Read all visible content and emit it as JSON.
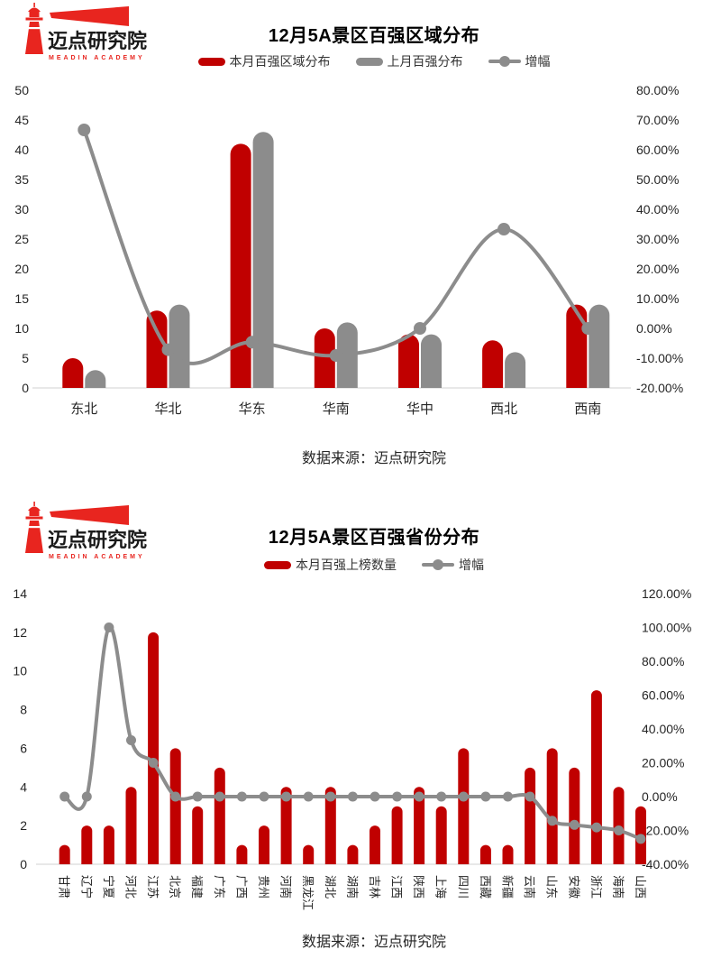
{
  "logo": {
    "name": "迈点研究院",
    "subtitle": "MEADIN ACADEMY",
    "color": "#e8251f"
  },
  "colors": {
    "bar_red": "#c00000",
    "bar_gray": "#8c8c8c",
    "line_gray": "#8c8c8c",
    "axis_line": "#d9d9d9",
    "text": "#262626"
  },
  "chart_data": [
    {
      "type": "bar+line",
      "title": "12月5A景区百强区域分布",
      "legend": [
        {
          "label": "本月百强区域分布",
          "swatch": "bar",
          "color": "#c00000"
        },
        {
          "label": "上月百强分布",
          "swatch": "bar",
          "color": "#8c8c8c"
        },
        {
          "label": "增幅",
          "swatch": "line",
          "color": "#8c8c8c"
        }
      ],
      "categories": [
        "东北",
        "华北",
        "华东",
        "华南",
        "华中",
        "西北",
        "西南"
      ],
      "series": [
        {
          "name": "本月百强区域分布",
          "type": "bar",
          "color": "#c00000",
          "values": [
            5,
            13,
            41,
            10,
            9,
            8,
            14
          ]
        },
        {
          "name": "上月百强分布",
          "type": "bar",
          "color": "#8c8c8c",
          "values": [
            3,
            14,
            43,
            11,
            9,
            6,
            14
          ]
        },
        {
          "name": "增幅",
          "type": "line",
          "color": "#8c8c8c",
          "unit": "%",
          "values": [
            66.67,
            -7.14,
            -4.65,
            -9.09,
            0,
            33.33,
            0
          ]
        }
      ],
      "left_axis": {
        "min": 0,
        "max": 50,
        "ticks": [
          "50",
          "45",
          "40",
          "35",
          "30",
          "25",
          "20",
          "15",
          "10",
          "5",
          "0"
        ]
      },
      "right_axis": {
        "min": -20,
        "max": 80,
        "ticks": [
          "80.00%",
          "70.00%",
          "60.00%",
          "50.00%",
          "40.00%",
          "30.00%",
          "20.00%",
          "10.00%",
          "0.00%",
          "-10.00%",
          "-20.00%"
        ]
      },
      "grid": "off",
      "legend_position": "top",
      "source": "数据来源：迈点研究院"
    },
    {
      "type": "bar+line",
      "title": "12月5A景区百强省份分布",
      "legend": [
        {
          "label": "本月百强上榜数量",
          "swatch": "bar",
          "color": "#c00000"
        },
        {
          "label": "增幅",
          "swatch": "line",
          "color": "#8c8c8c"
        }
      ],
      "categories": [
        "甘肃",
        "辽宁",
        "宁夏",
        "河北",
        "江苏",
        "北京",
        "福建",
        "广东",
        "广西",
        "贵州",
        "河南",
        "黑龙江",
        "湖北",
        "湖南",
        "吉林",
        "江西",
        "陕西",
        "上海",
        "四川",
        "西藏",
        "新疆",
        "云南",
        "山东",
        "安徽",
        "浙江",
        "海南",
        "山西"
      ],
      "series": [
        {
          "name": "本月百强上榜数量",
          "type": "bar",
          "color": "#c00000",
          "values": [
            1,
            2,
            2,
            4,
            12,
            6,
            3,
            5,
            1,
            2,
            4,
            1,
            4,
            1,
            2,
            3,
            4,
            3,
            6,
            1,
            1,
            5,
            6,
            5,
            9,
            4,
            3
          ]
        },
        {
          "name": "增幅",
          "type": "line",
          "color": "#8c8c8c",
          "unit": "%",
          "values": [
            0,
            0,
            100,
            33.33,
            20,
            0,
            0,
            0,
            0,
            0,
            0,
            0,
            0,
            0,
            0,
            0,
            0,
            0,
            0,
            0,
            0,
            0,
            -14.29,
            -16.67,
            -18.18,
            -20,
            -25
          ]
        }
      ],
      "left_axis": {
        "min": 0,
        "max": 14,
        "ticks": [
          "14",
          "12",
          "10",
          "8",
          "6",
          "4",
          "2",
          "0"
        ]
      },
      "right_axis": {
        "min": -40,
        "max": 120,
        "ticks": [
          "120.00%",
          "100.00%",
          "80.00%",
          "60.00%",
          "40.00%",
          "20.00%",
          "0.00%",
          "-20.00%",
          "-40.00%"
        ]
      },
      "grid": "off",
      "legend_position": "top",
      "source": "数据来源：迈点研究院"
    }
  ]
}
